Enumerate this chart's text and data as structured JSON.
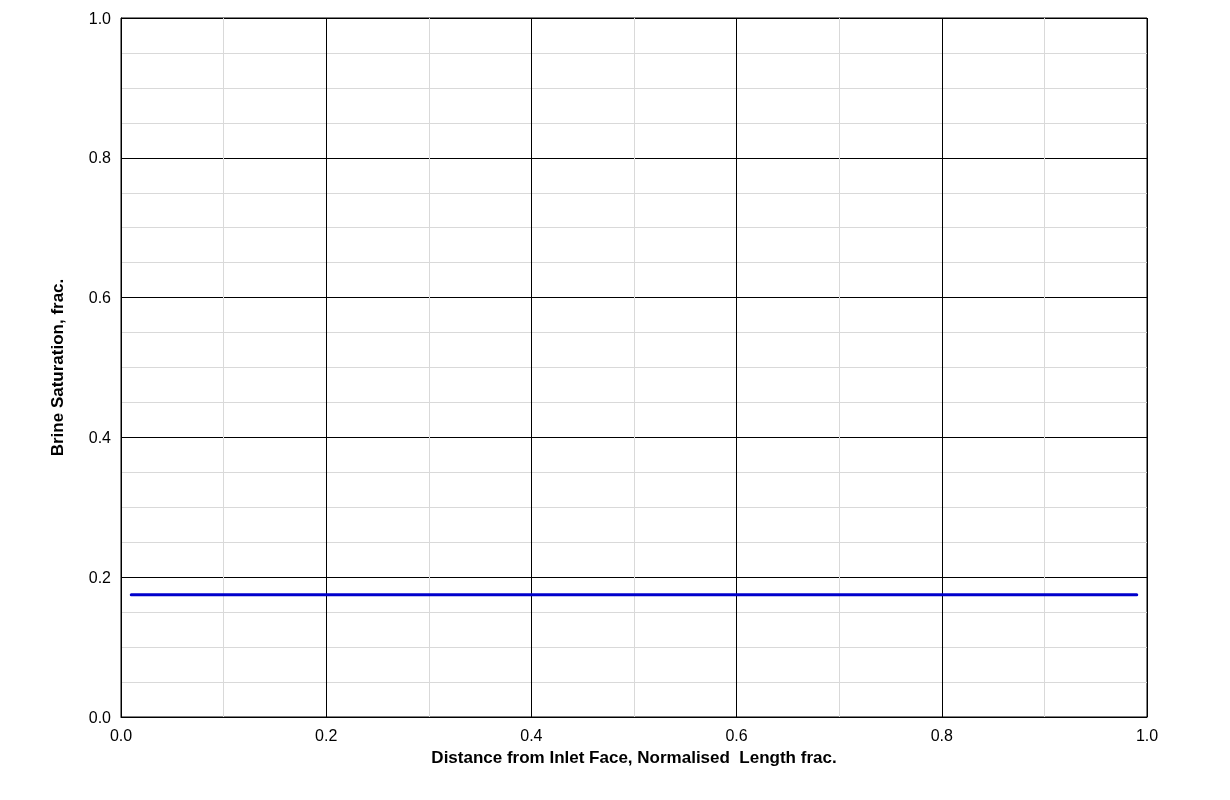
{
  "chart_data": {
    "type": "line",
    "xlabel": "Distance from Inlet Face, Normalised  Length frac.",
    "ylabel": "Brine Saturation, frac.",
    "xlim": [
      0,
      1
    ],
    "ylim": [
      0,
      1
    ],
    "xticks": [
      {
        "value": 0,
        "label": "0.0"
      },
      0.2,
      0.4,
      0.6,
      0.8,
      {
        "value": 1,
        "label": "1.0"
      }
    ],
    "yticks": [
      {
        "value": 0,
        "label": "0.0"
      },
      0.2,
      0.4,
      0.6,
      0.8,
      {
        "value": 1,
        "label": "1.0"
      }
    ],
    "grid": true,
    "marker": "none",
    "line_style": "solid",
    "series": [
      {
        "color": "#0000cc",
        "x": [
          0.01,
          0.99
        ],
        "values": [
          0.175,
          0.175
        ]
      }
    ]
  }
}
